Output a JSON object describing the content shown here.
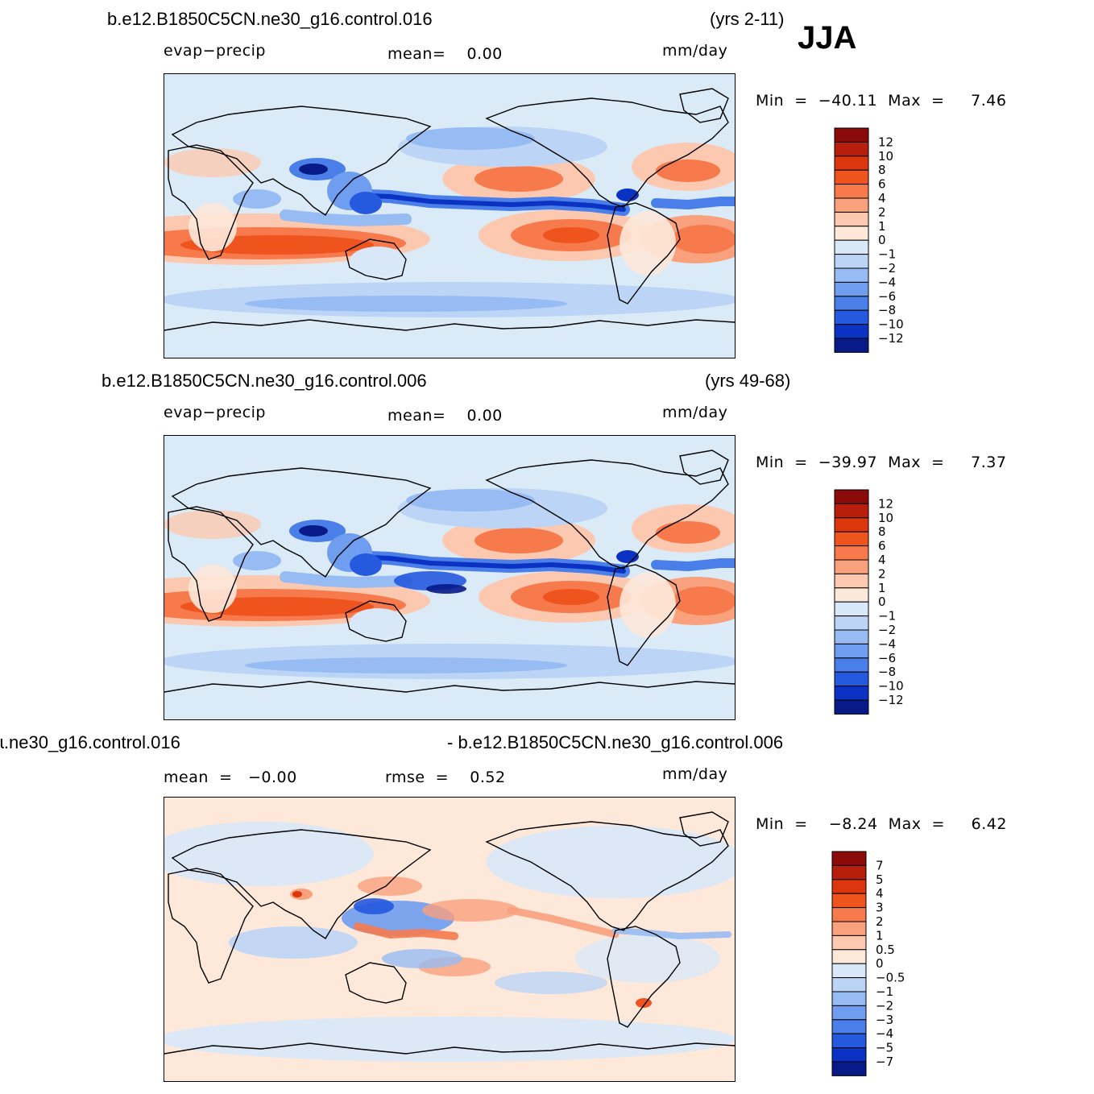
{
  "season": "JJA",
  "panels": [
    {
      "case_name": "b.e12.B1850C5CN.ne30_g16.control.016",
      "years": "(yrs 2-11)",
      "variable": "evap−precip",
      "stat_text": "mean=    0.00",
      "units": "mm/day",
      "min_max": "Min  =  −40.11  Max  =     7.46",
      "colorbar_labels": [
        "12",
        "10",
        "8",
        "6",
        "4",
        "2",
        "1",
        "0",
        "−1",
        "−2",
        "−4",
        "−6",
        "−8",
        "−10",
        "−12"
      ]
    },
    {
      "case_name": "b.e12.B1850C5CN.ne30_g16.control.006",
      "years": "(yrs 49-68)",
      "variable": "evap−precip",
      "stat_text": "mean=    0.00",
      "units": "mm/day",
      "min_max": "Min  =  −39.97  Max  =     7.37",
      "colorbar_labels": [
        "12",
        "10",
        "8",
        "6",
        "4",
        "2",
        "1",
        "0",
        "−1",
        "−2",
        "−4",
        "−6",
        "−8",
        "−10",
        "−12"
      ]
    },
    {
      "case_name_left": "ɩ.ne30_g16.control.016",
      "case_name_right": "- b.e12.B1850C5CN.ne30_g16.control.006",
      "mean_text": "mean  =   −0.00",
      "rmse_text": "rmse  =    0.52",
      "units": "mm/day",
      "min_max": "Min  =    −8.24  Max  =     6.42",
      "colorbar_labels": [
        "7",
        "5",
        "4",
        "3",
        "2",
        "1",
        "0.5",
        "0",
        "−0.5",
        "−1",
        "−2",
        "−3",
        "−4",
        "−5",
        "−7"
      ]
    }
  ],
  "colors": {
    "bluered_16": [
      "#8b0a0a",
      "#b81e0c",
      "#dc360e",
      "#f0541e",
      "#f67a4c",
      "#f9a07d",
      "#fcc9b0",
      "#fde8da",
      "#d8e8f8",
      "#bcd5f6",
      "#97bbf3",
      "#6f9df0",
      "#4a7ee8",
      "#2559de",
      "#0a33c4",
      "#071a88"
    ],
    "coast": "#000000",
    "map_background": "#dbeaf7"
  }
}
